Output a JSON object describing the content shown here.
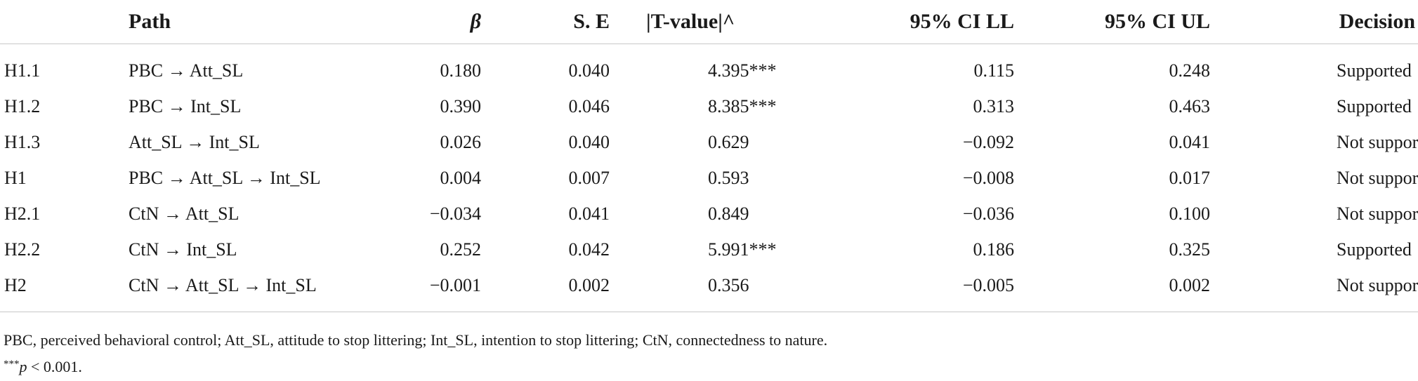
{
  "table": {
    "headers": {
      "id": "",
      "path": "Path",
      "beta": "β",
      "se": "S. E",
      "t": "|T-value|^",
      "ll": "95% CI LL",
      "ul": "95% CI UL",
      "decision": "Decision"
    },
    "rows": [
      {
        "id": "H1.1",
        "path": "PBC → Att_SL",
        "beta": "0.180",
        "se": "0.040",
        "t": "4.395***",
        "ll": "0.115",
        "ul": "0.248",
        "decision": "Supported"
      },
      {
        "id": "H1.2",
        "path": "PBC → Int_SL",
        "beta": "0.390",
        "se": "0.046",
        "t": "8.385***",
        "ll": "0.313",
        "ul": "0.463",
        "decision": "Supported"
      },
      {
        "id": "H1.3",
        "path": "Att_SL → Int_SL",
        "beta": "0.026",
        "se": "0.040",
        "t": "0.629",
        "ll": "−0.092",
        "ul": "0.041",
        "decision": "Not supported"
      },
      {
        "id": "H1",
        "path": "PBC → Att_SL → Int_SL",
        "beta": "0.004",
        "se": "0.007",
        "t": "0.593",
        "ll": "−0.008",
        "ul": "0.017",
        "decision": "Not supported"
      },
      {
        "id": "H2.1",
        "path": "CtN → Att_SL",
        "beta": "−0.034",
        "se": "0.041",
        "t": "0.849",
        "ll": "−0.036",
        "ul": "0.100",
        "decision": "Not supported"
      },
      {
        "id": "H2.2",
        "path": "CtN → Int_SL",
        "beta": "0.252",
        "se": "0.042",
        "t": "5.991***",
        "ll": "0.186",
        "ul": "0.325",
        "decision": "Supported"
      },
      {
        "id": "H2",
        "path": "CtN → Att_SL → Int_SL",
        "beta": "−0.001",
        "se": "0.002",
        "t": "0.356",
        "ll": "−0.005",
        "ul": "0.002",
        "decision": "Not supported"
      }
    ]
  },
  "footnotes": {
    "abbreviations": "PBC, perceived behavioral control; Att_SL, attitude to stop littering; Int_SL, intention to stop littering; CtN, connectedness to nature.",
    "sig_stars": "***",
    "sig_p": "p",
    "sig_rest": " < 0.001."
  }
}
